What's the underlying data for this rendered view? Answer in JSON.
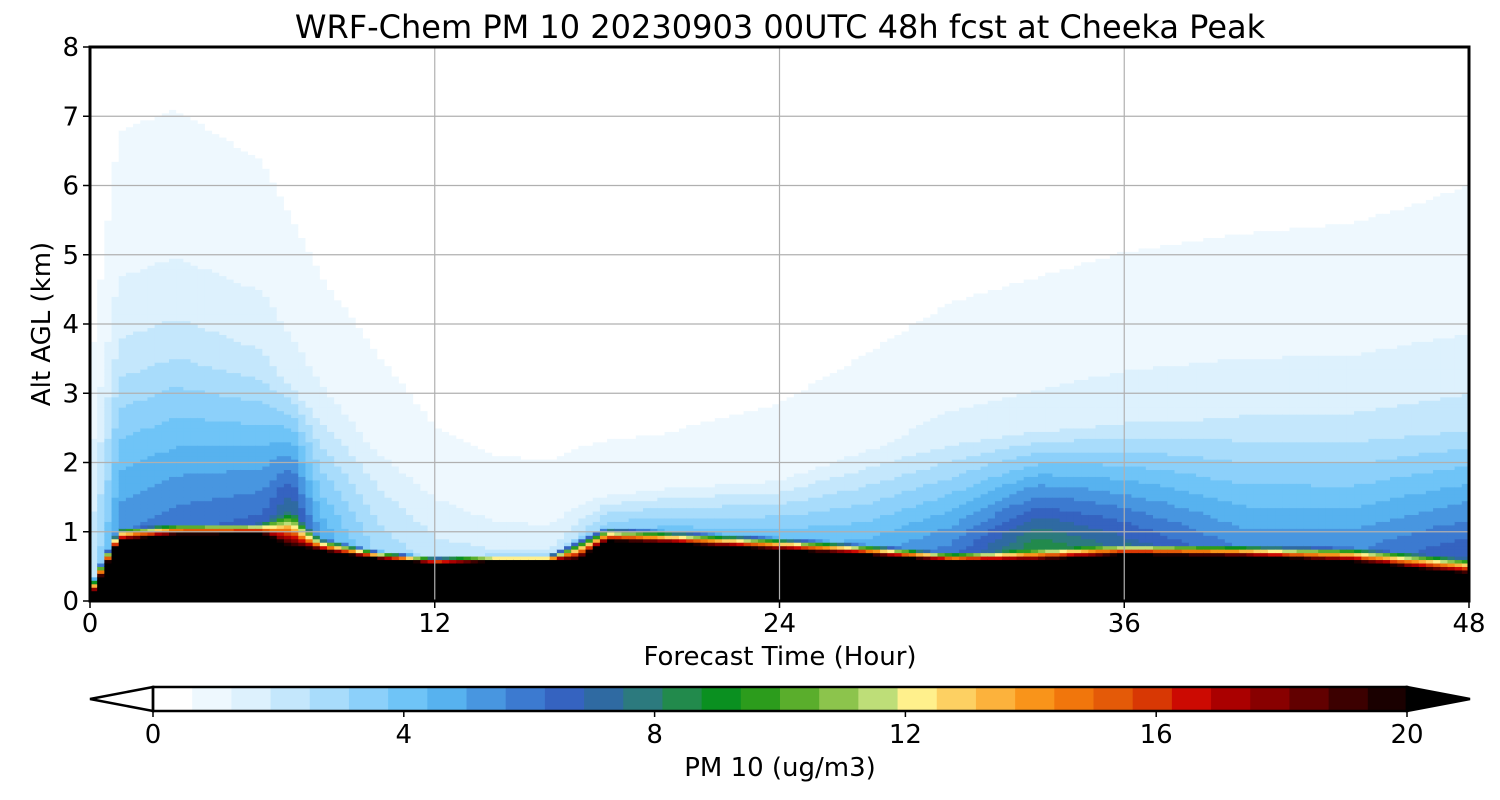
{
  "chart_data": {
    "type": "heatmap",
    "title": "WRF-Chem PM 10  20230903 00UTC 48h fcst at Cheeka Peak",
    "xlabel": "Forecast Time (Hour)",
    "ylabel": "Alt AGL (km)",
    "xlim": [
      0,
      48
    ],
    "ylim": [
      0,
      8
    ],
    "x_ticks": [
      "0",
      "12",
      "24",
      "36",
      "48"
    ],
    "y_ticks": [
      "0",
      "1",
      "2",
      "3",
      "4",
      "5",
      "6",
      "7",
      "8"
    ],
    "grid": true,
    "colorbar": {
      "label": "PM 10  (ug/m3)",
      "ticks": [
        "0",
        "4",
        "8",
        "12",
        "16",
        "20"
      ],
      "range": [
        0,
        20
      ],
      "extend": "both",
      "colors": [
        "#ffffff",
        "#eef8fe",
        "#ddf1fd",
        "#c4e7fc",
        "#a8dcfb",
        "#8cd0fa",
        "#6fc4f7",
        "#57b2ef",
        "#4896e0",
        "#3c7ad0",
        "#3563c0",
        "#2f6aa2",
        "#2c7a7e",
        "#228a4c",
        "#0a9020",
        "#2c9c1c",
        "#5aae2c",
        "#8cc44c",
        "#bede78",
        "#fff08c",
        "#fdd062",
        "#fcb23c",
        "#f9941a",
        "#f1760c",
        "#e45a08",
        "#d83804",
        "#cc0a02",
        "#aa0000",
        "#880000",
        "#620000",
        "#3c0000",
        "#1a0000",
        "#000000"
      ]
    },
    "hours": [
      0,
      1,
      3,
      6,
      7,
      8,
      10,
      12,
      14,
      16,
      17,
      18,
      20,
      24,
      27,
      30,
      33,
      36,
      40,
      44,
      48
    ],
    "profiles": {
      "surface_layer_top_km": [
        0.05,
        0.88,
        0.97,
        0.98,
        0.8,
        0.74,
        0.62,
        0.55,
        0.58,
        0.58,
        0.62,
        0.88,
        0.85,
        0.75,
        0.68,
        0.58,
        0.6,
        0.68,
        0.66,
        0.58,
        0.4
      ],
      "peak_below_surface_layer_ugm3": [
        20,
        20,
        20,
        20,
        20,
        20,
        20,
        20,
        20,
        20,
        20,
        20,
        20,
        20,
        20,
        20,
        20,
        20,
        20,
        20,
        20
      ],
      "transition_depth_km": [
        0.2,
        0.18,
        0.15,
        0.15,
        0.5,
        0.18,
        0.12,
        0.1,
        0.1,
        0.1,
        0.3,
        0.2,
        0.18,
        0.18,
        0.15,
        0.12,
        0.15,
        0.15,
        0.15,
        0.2,
        0.22
      ],
      "upper_peak_ugm3": [
        2,
        5.5,
        6,
        6.5,
        7.8,
        5,
        3,
        2.2,
        2,
        2,
        2.5,
        3.5,
        4,
        4.2,
        4.5,
        6,
        8.8,
        7.2,
        5.5,
        5.5,
        7
      ],
      "upper_top_km": [
        2.5,
        3.3,
        3.6,
        3.4,
        3.1,
        2.8,
        2.2,
        1.8,
        1.4,
        1.3,
        1.5,
        1.6,
        1.7,
        1.8,
        2.2,
        2.4,
        2.5,
        2.6,
        2.6,
        2.5,
        2.5
      ],
      "background_ugm3": [
        0.3,
        0.8,
        0.8,
        0.7,
        0.6,
        0.5,
        0.4,
        0.3,
        0.3,
        0.3,
        0.3,
        0.3,
        0.3,
        0.35,
        0.4,
        0.5,
        0.55,
        0.6,
        0.65,
        0.7,
        0.8
      ]
    }
  }
}
